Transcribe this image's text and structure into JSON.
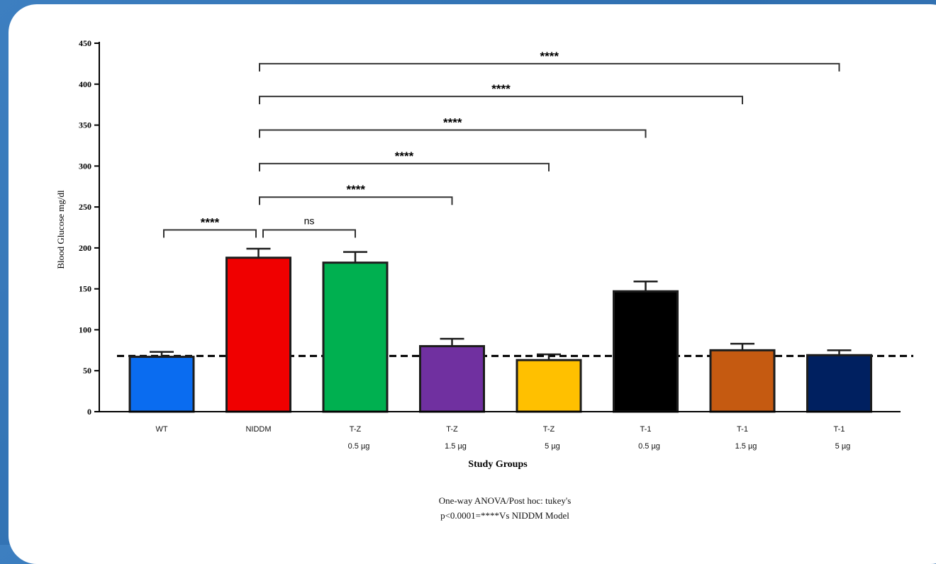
{
  "chart_data": {
    "type": "bar",
    "xlabel": "Study Groups",
    "ylabel": "Blood Glucose mg/dl",
    "ylim": [
      0,
      450
    ],
    "yticks": [
      0,
      50,
      100,
      150,
      200,
      250,
      300,
      350,
      400,
      450
    ],
    "categories": [
      {
        "line1": "WT",
        "line2": ""
      },
      {
        "line1": "NIDDM",
        "line2": ""
      },
      {
        "line1": "T-Z",
        "line2": "0.5 µg"
      },
      {
        "line1": "T-Z",
        "line2": "1.5 µg"
      },
      {
        "line1": "T-Z",
        "line2": "5 µg"
      },
      {
        "line1": "T-1",
        "line2": "0.5 µg"
      },
      {
        "line1": "T-1",
        "line2": "1.5 µg"
      },
      {
        "line1": "T-1",
        "line2": "5 µg"
      }
    ],
    "values": [
      67,
      188,
      182,
      80,
      63,
      147,
      75,
      69
    ],
    "errors": [
      6,
      11,
      13,
      9,
      7,
      12,
      8,
      6
    ],
    "colors": [
      "#0a6cf0",
      "#f00000",
      "#00b050",
      "#7030a0",
      "#ffc000",
      "#000000",
      "#c55a11",
      "#002060"
    ],
    "reference_line": 68,
    "comparisons": [
      {
        "from": 0,
        "to": 1,
        "y": 222,
        "label": "****"
      },
      {
        "from": 1,
        "to": 2,
        "y": 222,
        "label": "ns"
      },
      {
        "from": 1,
        "to": 3,
        "y": 262,
        "label": "****"
      },
      {
        "from": 1,
        "to": 4,
        "y": 303,
        "label": "****"
      },
      {
        "from": 1,
        "to": 5,
        "y": 344,
        "label": "****"
      },
      {
        "from": 1,
        "to": 6,
        "y": 385,
        "label": "****"
      },
      {
        "from": 1,
        "to": 7,
        "y": 425,
        "label": "****"
      }
    ],
    "footnote": [
      "One-way ANOVA/Post hoc: tukey's",
      "p<0.0001=****Vs NIDDM  Model"
    ]
  }
}
